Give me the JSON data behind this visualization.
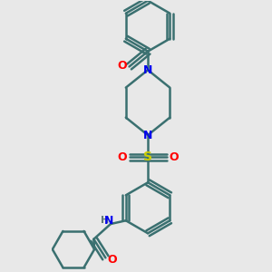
{
  "bg_color": "#e8e8e8",
  "bond_color": "#3a7070",
  "N_color": "#0000ee",
  "O_color": "#ff0000",
  "S_color": "#cccc00",
  "H_color": "#607878",
  "lw": 1.8,
  "figsize": [
    3.0,
    3.0
  ],
  "dpi": 100,
  "xlim": [
    -2.5,
    2.5
  ],
  "ylim": [
    -4.2,
    3.8
  ]
}
